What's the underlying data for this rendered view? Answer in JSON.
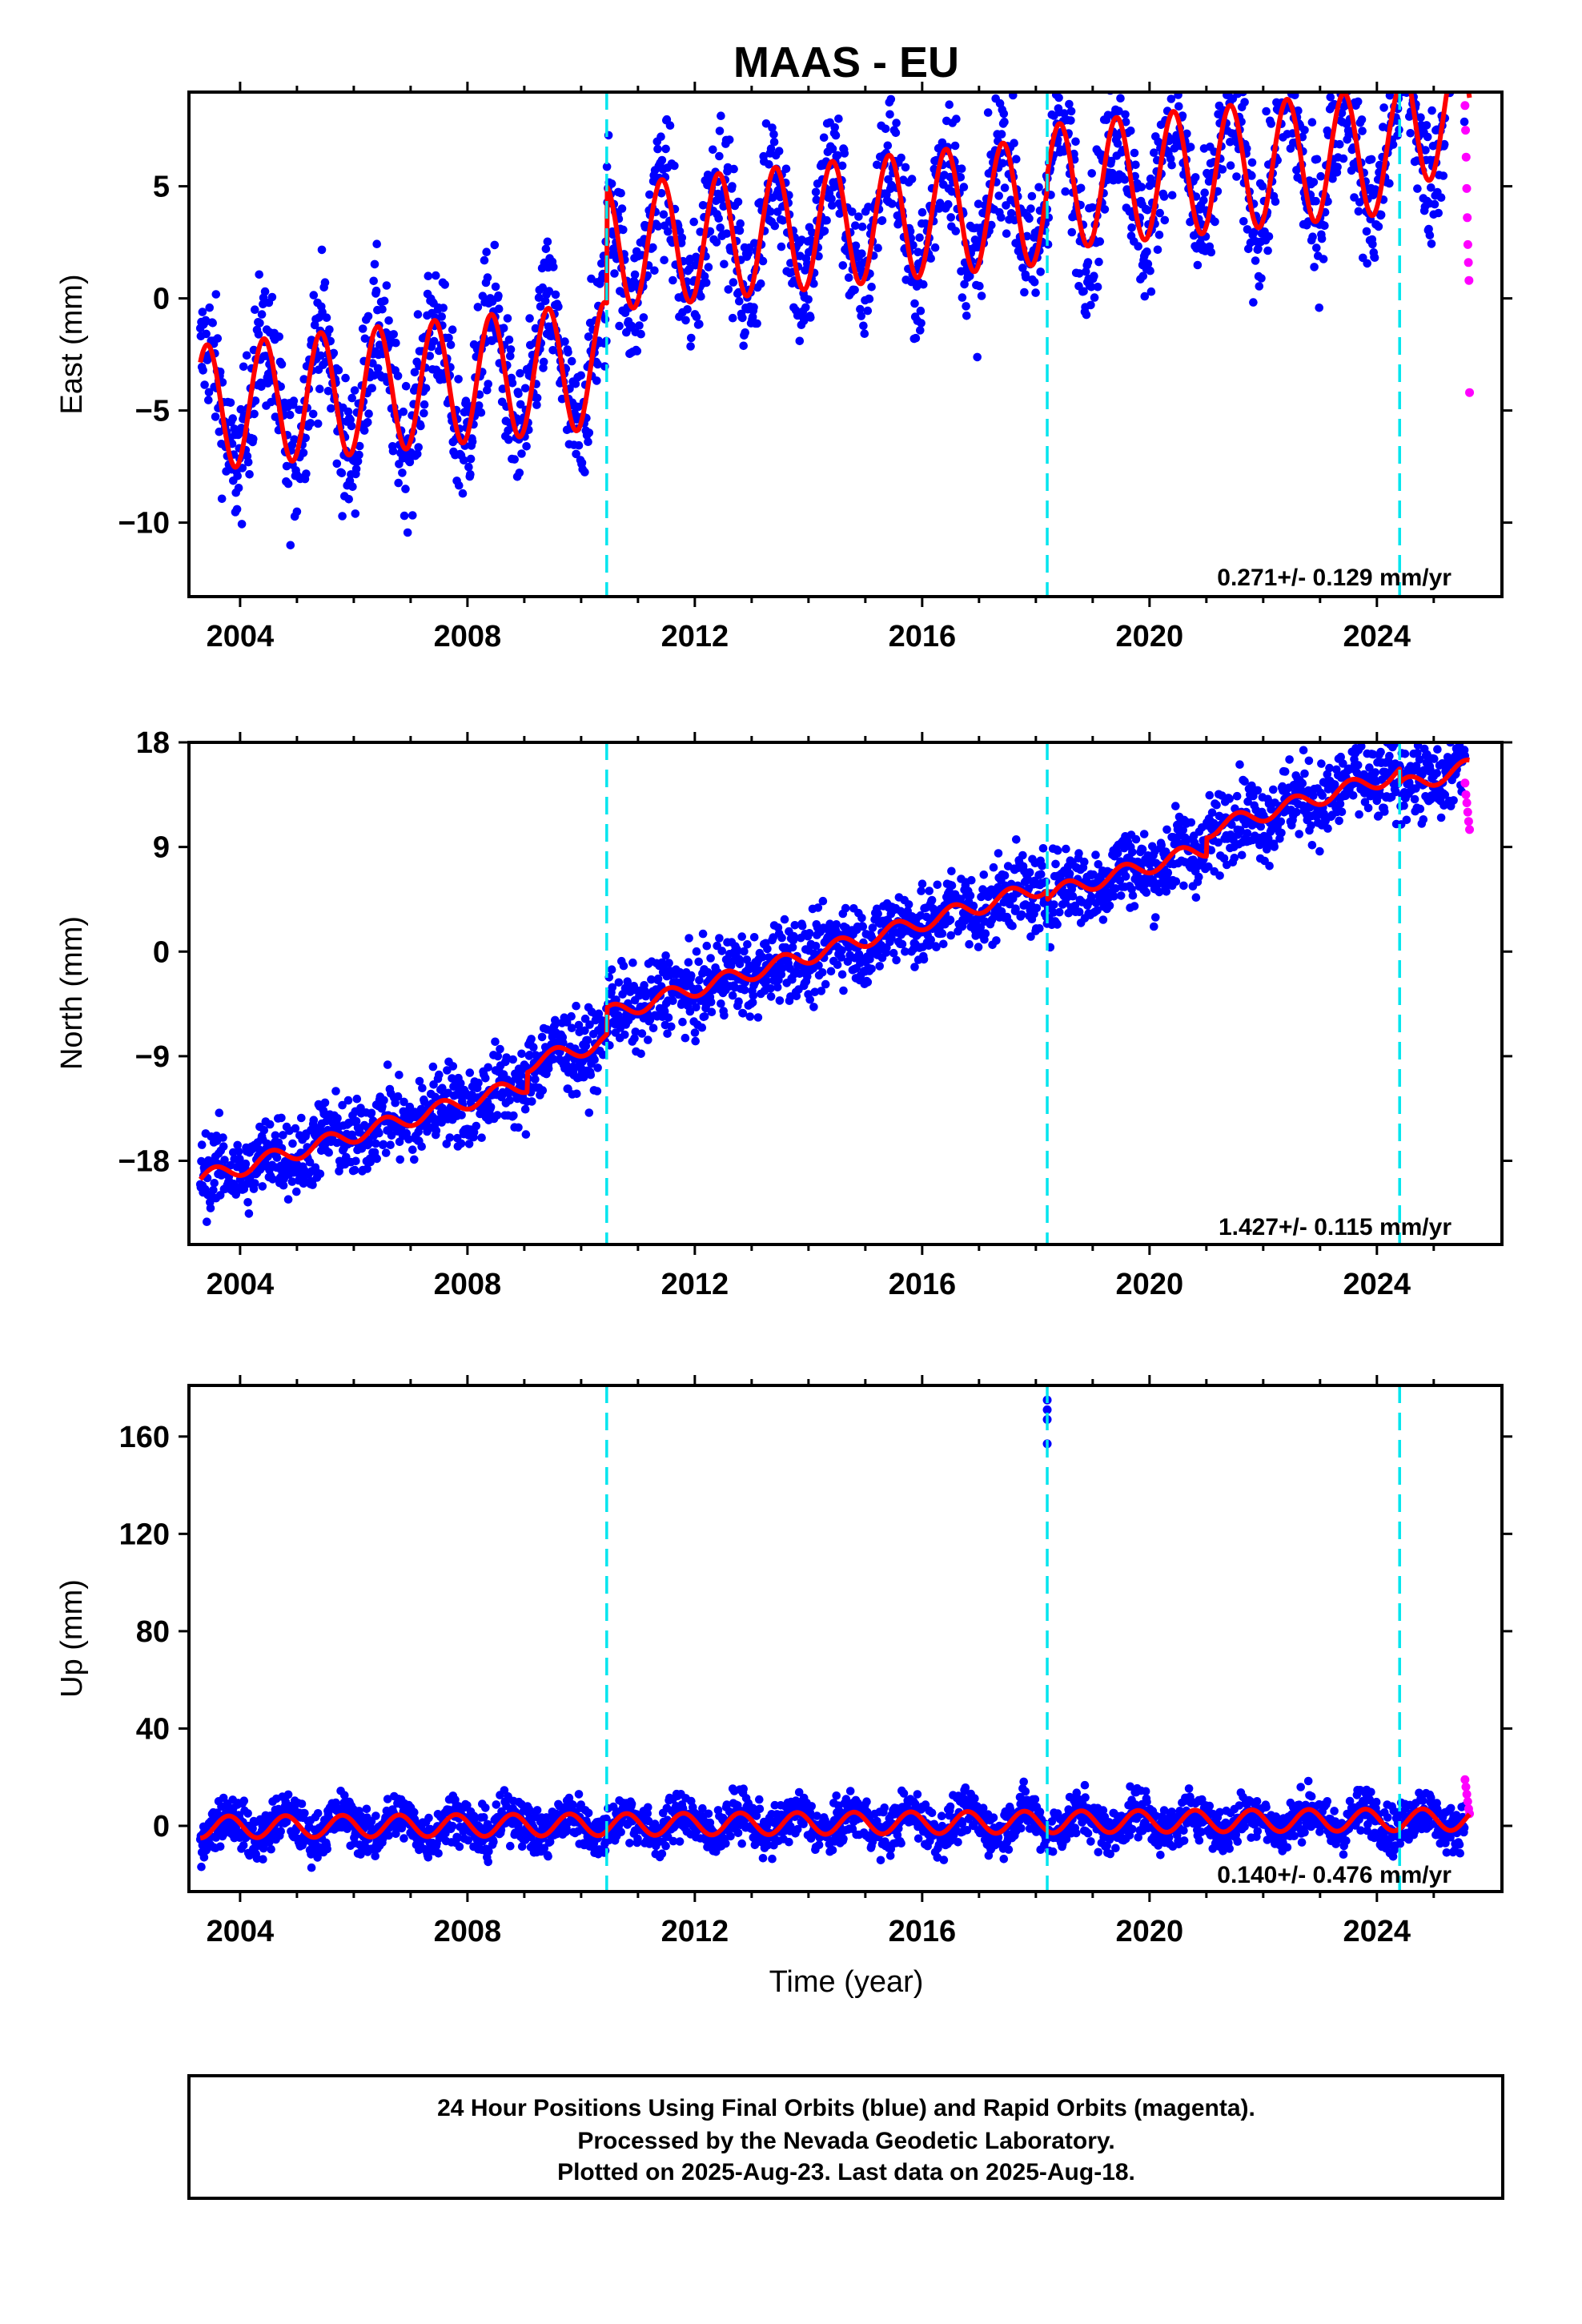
{
  "title": "MAAS - EU",
  "colors": {
    "final_points": "#0000ff",
    "rapid_points": "#ff00ff",
    "model": "#ff0000",
    "steps": "#00e5ee",
    "frame": "#000000"
  },
  "chart_data": [
    {
      "type": "scatter",
      "component": "east",
      "ylabel": "East (mm)",
      "xlim": [
        2003.1,
        2026.2
      ],
      "ylim": [
        -13.3,
        9.2
      ],
      "yticks": [
        -10,
        -5,
        0,
        5
      ],
      "ytick_labels": [
        "−10",
        "−5",
        "0",
        "5"
      ],
      "xticks": [
        2004,
        2008,
        2012,
        2016,
        2020,
        2024
      ],
      "xtick_labels": [
        "2004",
        "2008",
        "2012",
        "2016",
        "2020",
        "2024"
      ],
      "step_epochs": [
        2010.45,
        2018.2,
        2024.4
      ],
      "rate_text": "0.271+/- 0.129 mm/yr",
      "model": {
        "offsets": [
          {
            "from": 2003.3,
            "value": -4.9
          },
          {
            "from": 2010.45,
            "value": 0.3
          },
          {
            "from": 2018.2,
            "value": 0.9
          },
          {
            "from": 2024.4,
            "value": 2.2
          }
        ],
        "rate": 0.271,
        "amplitude": 2.8,
        "phase_day": 0.17
      },
      "series": [
        {
          "data_source": "Final Orbits",
          "x_range": [
            2003.3,
            2025.55
          ],
          "scatter": 1.5
        },
        {
          "data_source": "Rapid Orbits",
          "x_range": [
            2025.55,
            2025.63
          ],
          "values": [
            8.6,
            7.5,
            6.3,
            4.9,
            3.6,
            2.4,
            1.6,
            0.8,
            -4.2
          ]
        }
      ]
    },
    {
      "type": "scatter",
      "component": "north",
      "ylabel": "North (mm)",
      "xlim": [
        2003.1,
        2026.2
      ],
      "ylim": [
        -25.2,
        18.0
      ],
      "yticks": [
        -18,
        -9,
        0,
        9,
        18
      ],
      "ytick_labels": [
        "−18",
        "−9",
        "0",
        "9",
        "18"
      ],
      "xticks": [
        2004,
        2008,
        2012,
        2016,
        2020,
        2024
      ],
      "xtick_labels": [
        "2004",
        "2008",
        "2012",
        "2016",
        "2020",
        "2024"
      ],
      "step_epochs": [
        2010.45,
        2018.2,
        2024.4
      ],
      "rate_text": "1.427+/- 0.115 mm/yr",
      "model": {
        "offsets": [
          {
            "from": 2003.3,
            "value": -19.6
          },
          {
            "from": 2009.05,
            "value": -17.9
          },
          {
            "from": 2010.45,
            "value": -15.6
          },
          {
            "from": 2018.2,
            "value": -16.4
          },
          {
            "from": 2021.0,
            "value": -14.8
          },
          {
            "from": 2024.4,
            "value": -16.0
          }
        ],
        "rate": 1.427,
        "amplitude": 0.7,
        "phase_day": 0.3
      },
      "series": [
        {
          "data_source": "Final Orbits",
          "x_range": [
            2003.3,
            2025.55
          ],
          "scatter": 1.7
        },
        {
          "data_source": "Rapid Orbits",
          "x_range": [
            2025.55,
            2025.63
          ],
          "values": [
            14.5,
            13.5,
            12.8,
            12.0,
            11.2,
            10.5
          ]
        }
      ]
    },
    {
      "type": "scatter",
      "component": "up",
      "ylabel": "Up (mm)",
      "xlabel": "Time (year)",
      "xlim": [
        2003.1,
        2026.2
      ],
      "ylim": [
        -27,
        181
      ],
      "yticks": [
        0,
        40,
        80,
        120,
        160
      ],
      "ytick_labels": [
        "0",
        "40",
        "80",
        "120",
        "160"
      ],
      "xticks": [
        2004,
        2008,
        2012,
        2016,
        2020,
        2024
      ],
      "xtick_labels": [
        "2004",
        "2008",
        "2012",
        "2016",
        "2020",
        "2024"
      ],
      "step_epochs": [
        2010.45,
        2018.2,
        2024.4
      ],
      "rate_text": "0.140+/- 0.476 mm/yr",
      "model": {
        "offsets": [
          {
            "from": 2003.3,
            "value": -0.5
          }
        ],
        "rate": 0.14,
        "amplitude": 4.5,
        "phase_day": 0.55
      },
      "outliers": [
        [
          2018.2,
          175
        ],
        [
          2018.2,
          171
        ],
        [
          2018.2,
          167
        ],
        [
          2018.2,
          157
        ]
      ],
      "series": [
        {
          "data_source": "Final Orbits",
          "x_range": [
            2003.3,
            2025.55
          ],
          "scatter": 4.8
        },
        {
          "data_source": "Rapid Orbits",
          "x_range": [
            2025.55,
            2025.63
          ],
          "values": [
            19,
            16,
            13,
            10,
            7,
            5
          ]
        }
      ]
    }
  ],
  "footer": {
    "line1": "24 Hour Positions Using Final Orbits (blue) and Rapid Orbits (magenta).",
    "line2": "Processed by the Nevada Geodetic Laboratory.",
    "line3": "Plotted on 2025-Aug-23. Last data on 2025-Aug-18."
  }
}
